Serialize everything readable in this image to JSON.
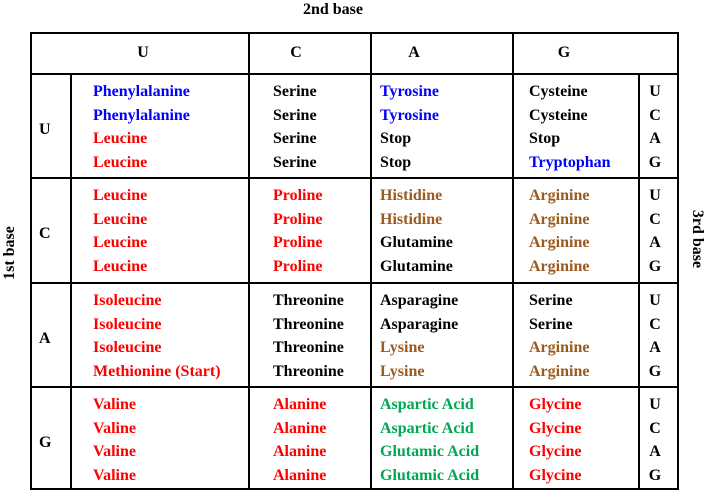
{
  "labels": {
    "second_base": "2nd base",
    "first_base": "1st base",
    "third_base": "3rd base"
  },
  "columns": [
    "U",
    "C",
    "A",
    "G"
  ],
  "rows": [
    {
      "first": "U",
      "third": [
        "U",
        "C",
        "A",
        "G"
      ],
      "cells": [
        [
          {
            "t": "Phenylalanine",
            "c": "blue"
          },
          {
            "t": "Phenylalanine",
            "c": "blue"
          },
          {
            "t": "Leucine",
            "c": "red"
          },
          {
            "t": "Leucine",
            "c": "red"
          }
        ],
        [
          {
            "t": "Serine",
            "c": "black"
          },
          {
            "t": "Serine",
            "c": "black"
          },
          {
            "t": "Serine",
            "c": "black"
          },
          {
            "t": "Serine",
            "c": "black"
          }
        ],
        [
          {
            "t": "Tyrosine",
            "c": "blue"
          },
          {
            "t": "Tyrosine",
            "c": "blue"
          },
          {
            "t": "Stop",
            "c": "black"
          },
          {
            "t": "Stop",
            "c": "black"
          }
        ],
        [
          {
            "t": "Cysteine",
            "c": "black"
          },
          {
            "t": "Cysteine",
            "c": "black"
          },
          {
            "t": "Stop",
            "c": "black"
          },
          {
            "t": "Tryptophan",
            "c": "blue"
          }
        ]
      ]
    },
    {
      "first": "C",
      "third": [
        "U",
        "C",
        "A",
        "G"
      ],
      "cells": [
        [
          {
            "t": "Leucine",
            "c": "red"
          },
          {
            "t": "Leucine",
            "c": "red"
          },
          {
            "t": "Leucine",
            "c": "red"
          },
          {
            "t": "Leucine",
            "c": "red"
          }
        ],
        [
          {
            "t": "Proline",
            "c": "red"
          },
          {
            "t": "Proline",
            "c": "red"
          },
          {
            "t": "Proline",
            "c": "red"
          },
          {
            "t": "Proline",
            "c": "red"
          }
        ],
        [
          {
            "t": "Histidine",
            "c": "brown"
          },
          {
            "t": "Histidine",
            "c": "brown"
          },
          {
            "t": "Glutamine",
            "c": "black"
          },
          {
            "t": "Glutamine",
            "c": "black"
          }
        ],
        [
          {
            "t": "Arginine",
            "c": "brown"
          },
          {
            "t": "Arginine",
            "c": "brown"
          },
          {
            "t": "Arginine",
            "c": "brown"
          },
          {
            "t": "Arginine",
            "c": "brown"
          }
        ]
      ]
    },
    {
      "first": "A",
      "third": [
        "U",
        "C",
        "A",
        "G"
      ],
      "cells": [
        [
          {
            "t": "Isoleucine",
            "c": "red"
          },
          {
            "t": "Isoleucine",
            "c": "red"
          },
          {
            "t": "Isoleucine",
            "c": "red"
          },
          {
            "t": "Methionine (Start)",
            "c": "red"
          }
        ],
        [
          {
            "t": "Threonine",
            "c": "black"
          },
          {
            "t": "Threonine",
            "c": "black"
          },
          {
            "t": "Threonine",
            "c": "black"
          },
          {
            "t": "Threonine",
            "c": "black"
          }
        ],
        [
          {
            "t": "Asparagine",
            "c": "black"
          },
          {
            "t": "Asparagine",
            "c": "black"
          },
          {
            "t": "Lysine",
            "c": "brown"
          },
          {
            "t": "Lysine",
            "c": "brown"
          }
        ],
        [
          {
            "t": "Serine",
            "c": "black"
          },
          {
            "t": "Serine",
            "c": "black"
          },
          {
            "t": "Arginine",
            "c": "brown"
          },
          {
            "t": "Arginine",
            "c": "brown"
          }
        ]
      ]
    },
    {
      "first": "G",
      "third": [
        "U",
        "C",
        "A",
        "G"
      ],
      "cells": [
        [
          {
            "t": "Valine",
            "c": "red"
          },
          {
            "t": "Valine",
            "c": "red"
          },
          {
            "t": "Valine",
            "c": "red"
          },
          {
            "t": "Valine",
            "c": "red"
          }
        ],
        [
          {
            "t": "Alanine",
            "c": "red"
          },
          {
            "t": "Alanine",
            "c": "red"
          },
          {
            "t": "Alanine",
            "c": "red"
          },
          {
            "t": "Alanine",
            "c": "red"
          }
        ],
        [
          {
            "t": "Aspartic Acid",
            "c": "green"
          },
          {
            "t": "Aspartic Acid",
            "c": "green"
          },
          {
            "t": "Glutamic Acid",
            "c": "green"
          },
          {
            "t": "Glutamic Acid",
            "c": "green"
          }
        ],
        [
          {
            "t": "Glycine",
            "c": "red"
          },
          {
            "t": "Glycine",
            "c": "red"
          },
          {
            "t": "Glycine",
            "c": "red"
          },
          {
            "t": "Glycine",
            "c": "red"
          }
        ]
      ]
    }
  ],
  "colors": {
    "blue": "#0000ff",
    "red": "#ff0000",
    "brown": "#9c5a1e",
    "green": "#00a651",
    "black": "#000000",
    "border": "#000000"
  }
}
